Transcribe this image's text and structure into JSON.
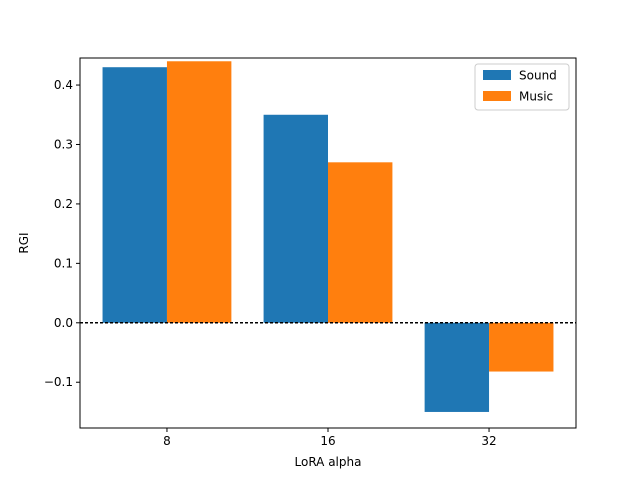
{
  "chart_data": {
    "type": "bar",
    "title": "",
    "xlabel": "LoRA alpha",
    "ylabel": "RGI",
    "categories": [
      "8",
      "16",
      "32"
    ],
    "series": [
      {
        "name": "Sound",
        "color": "#1f77b4",
        "values": [
          0.43,
          0.35,
          -0.15
        ]
      },
      {
        "name": "Music",
        "color": "#ff7f0e",
        "values": [
          0.44,
          0.27,
          -0.082
        ]
      }
    ],
    "ylim": [
      -0.177,
      0.4455
    ],
    "yticks": [
      -0.1,
      0.0,
      0.1,
      0.2,
      0.3,
      0.4
    ],
    "ytick_labels": [
      "−0.1",
      "0.0",
      "0.1",
      "0.2",
      "0.3",
      "0.4"
    ],
    "reference_line": {
      "y": 0,
      "style": "dashed",
      "color": "#000000"
    },
    "legend": {
      "position": "top-right"
    },
    "grid": false
  }
}
